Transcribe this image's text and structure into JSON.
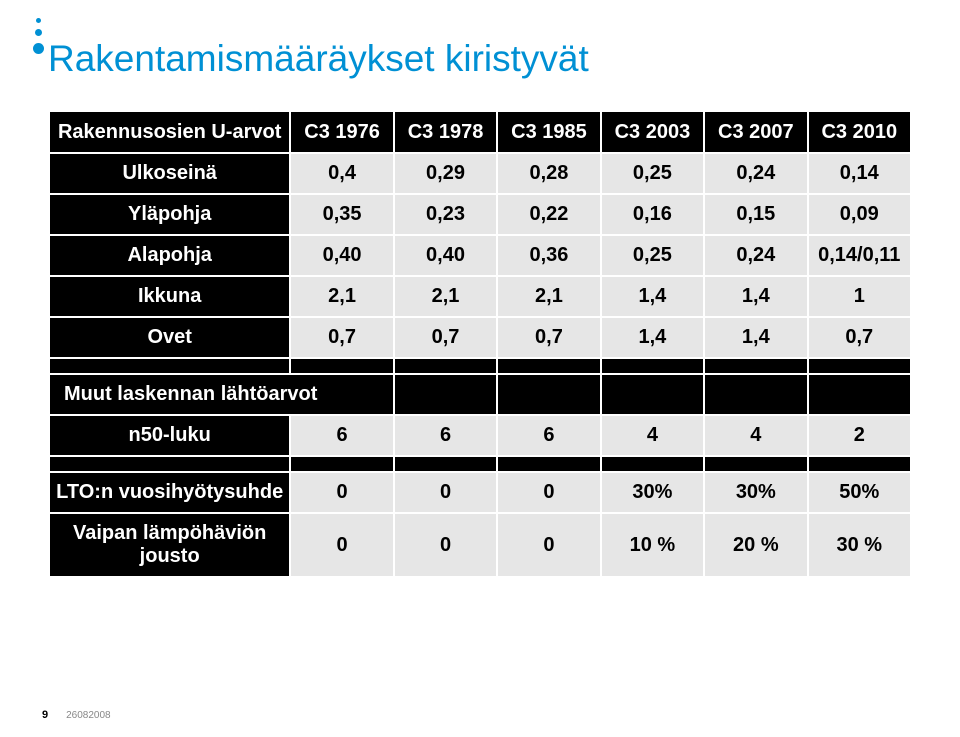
{
  "slide": {
    "title": "Rakentamismääräykset kiristyvät",
    "pagenum": "9",
    "date": "26082008"
  },
  "table": {
    "header_label": "Rakennusosien U-arvot",
    "columns": [
      "C3 1976",
      "C3 1978",
      "C3 1985",
      "C3 2003",
      "C3 2007",
      "C3 2010"
    ],
    "rows": [
      {
        "label": "Ulkoseinä",
        "cells": [
          "0,4",
          "0,29",
          "0,28",
          "0,25",
          "0,24",
          "0,14"
        ]
      },
      {
        "label": "Yläpohja",
        "cells": [
          "0,35",
          "0,23",
          "0,22",
          "0,16",
          "0,15",
          "0,09"
        ]
      },
      {
        "label": "Alapohja",
        "cells": [
          "0,40",
          "0,40",
          "0,36",
          "0,25",
          "0,24",
          "0,14/0,11"
        ]
      },
      {
        "label": "Ikkuna",
        "cells": [
          "2,1",
          "2,1",
          "2,1",
          "1,4",
          "1,4",
          "1"
        ]
      },
      {
        "label": "Ovet",
        "cells": [
          "0,7",
          "0,7",
          "0,7",
          "1,4",
          "1,4",
          "0,7"
        ]
      }
    ],
    "section2_label": "Muut laskennan lähtöarvot",
    "row_n50": {
      "label": "n50-luku",
      "cells": [
        "6",
        "6",
        "6",
        "4",
        "4",
        "2"
      ]
    },
    "row_lto": {
      "label": "LTO:n vuosihyötysuhde",
      "cells": [
        "0",
        "0",
        "0",
        "30%",
        "30%",
        "50%"
      ]
    },
    "row_vaipan": {
      "label": "Vaipan lämpöhäviön jousto",
      "cells": [
        "0",
        "0",
        "0",
        "10 %",
        "20 %",
        "30 %"
      ]
    }
  },
  "style": {
    "title_color": "#0090d4",
    "header_bg": "#000000",
    "header_fg": "#ffffff",
    "cell_bg": "#e6e6e6",
    "cell_fg": "#000000",
    "border_color": "#ffffff",
    "font_family": "Arial",
    "title_fontsize": 37,
    "cell_fontsize": 20
  }
}
